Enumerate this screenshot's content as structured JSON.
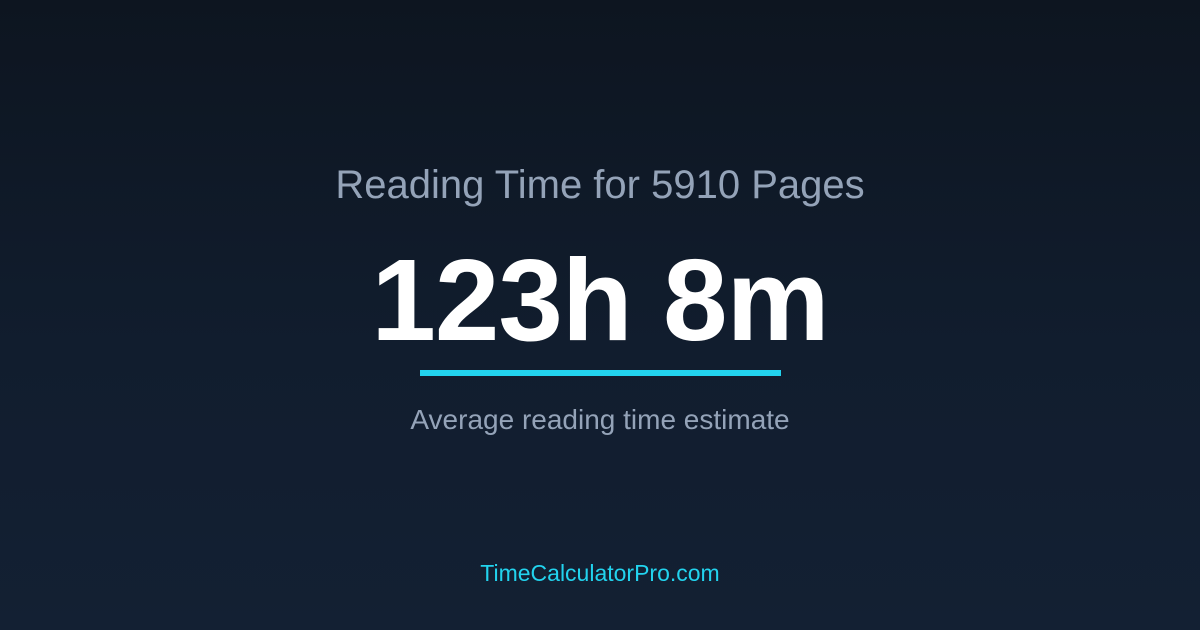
{
  "title": "Reading Time for 5910 Pages",
  "result": "123h 8m",
  "subtitle": "Average reading time estimate",
  "footer": "TimeCalculatorPro.com",
  "colors": {
    "accent": "#22d3ee",
    "muted_text": "#94a3b8",
    "background": "#0f1a2a"
  }
}
